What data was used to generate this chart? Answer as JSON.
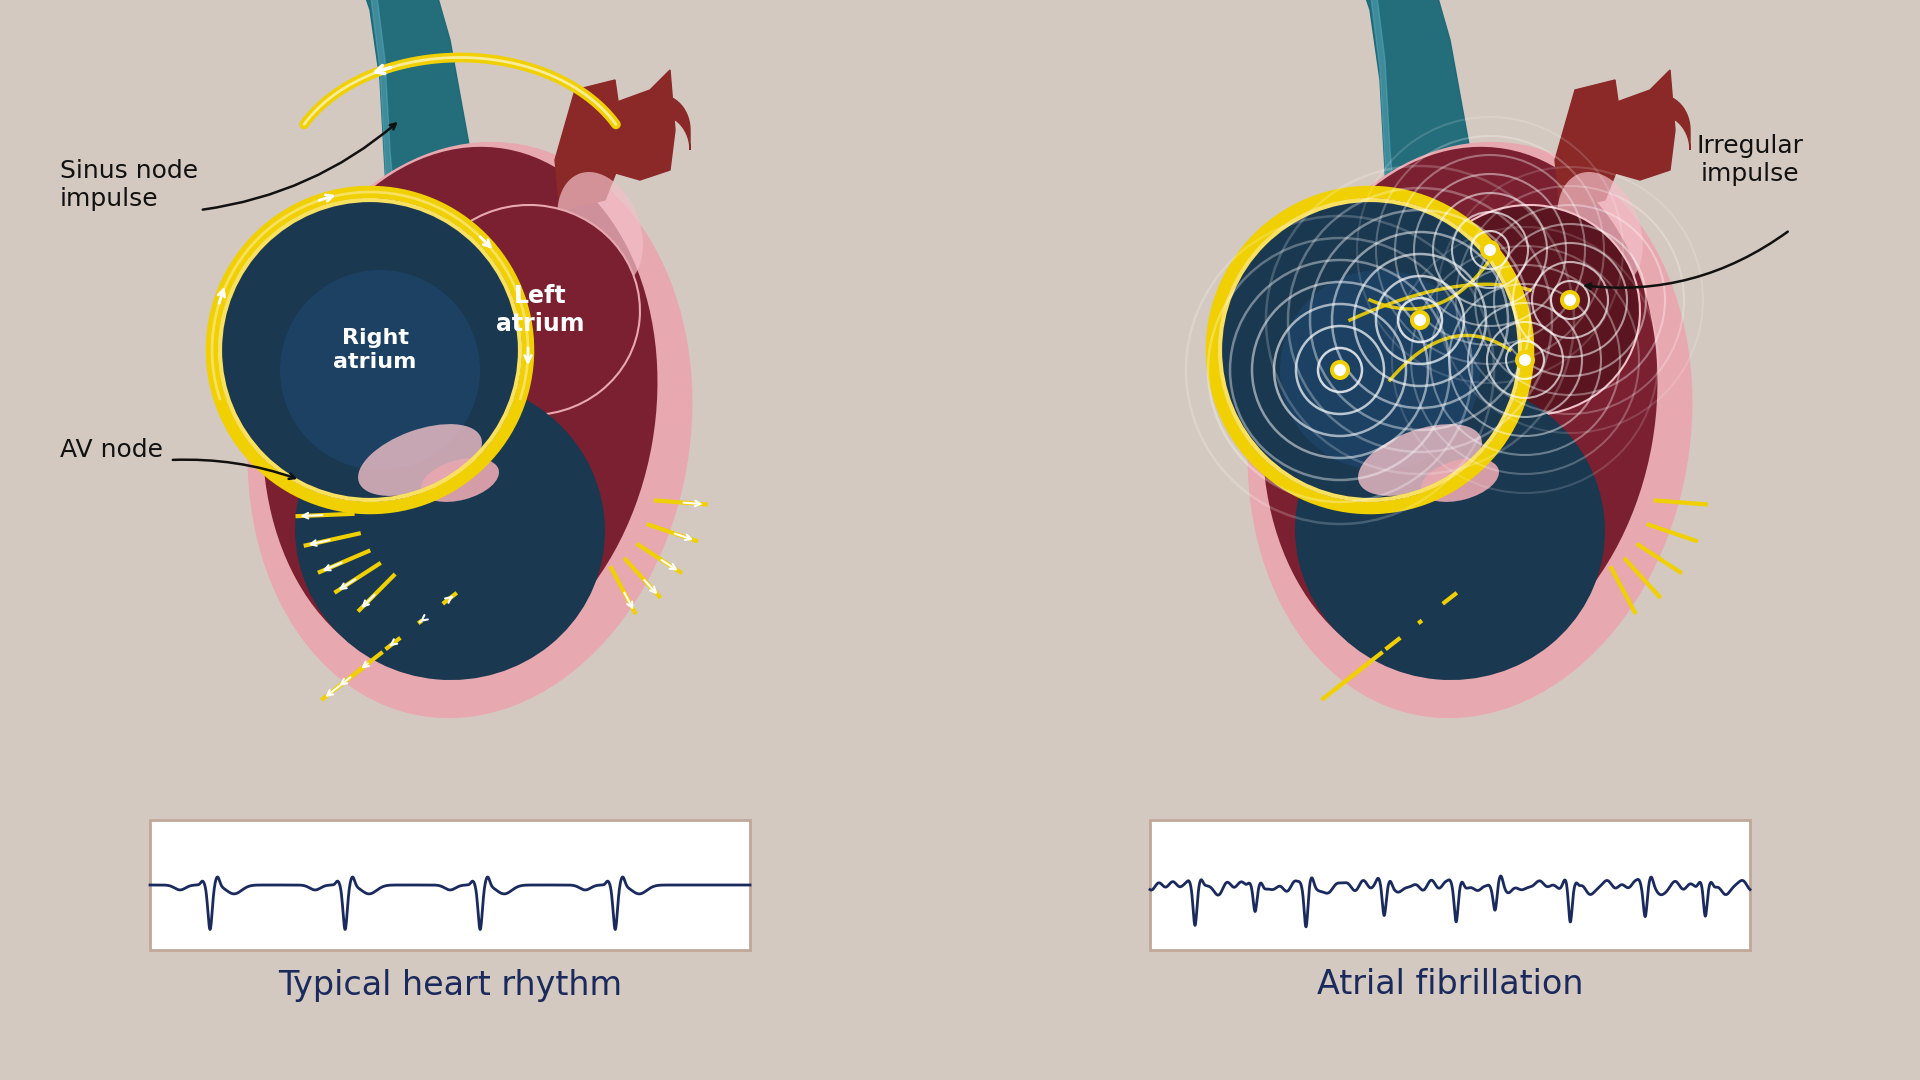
{
  "bg_color": "#d4c9c0",
  "title_left": "Typical heart rhythm",
  "title_right": "Atrial fibrillation",
  "label_sinus": "Sinus node\nimpulse",
  "label_av": "AV node",
  "label_left_atrium": "Left\natrium",
  "label_right_atrium": "Right\natrium",
  "label_irregular": "Irregular\nimpulse",
  "colors": {
    "pink_outer": "#e8a8b0",
    "pink_light": "#f2c0c8",
    "heart_dark": "#7a2030",
    "heart_mid": "#902840",
    "blood_dark": "#1a3850",
    "blood_mid": "#1e4870",
    "teal_dark": "#1a6878",
    "teal_mid": "#2a8090",
    "teal_light": "#5aaabb",
    "yellow": "#f0d000",
    "yellow_light": "#f8e060",
    "white": "#ffffff",
    "ecg_color": "#1a2a5c",
    "black": "#111111",
    "vessel_red": "#8b2828",
    "vessel_pink": "#c87878",
    "dark_maroon": "#3a0a10",
    "brown_dark": "#5a1520"
  }
}
